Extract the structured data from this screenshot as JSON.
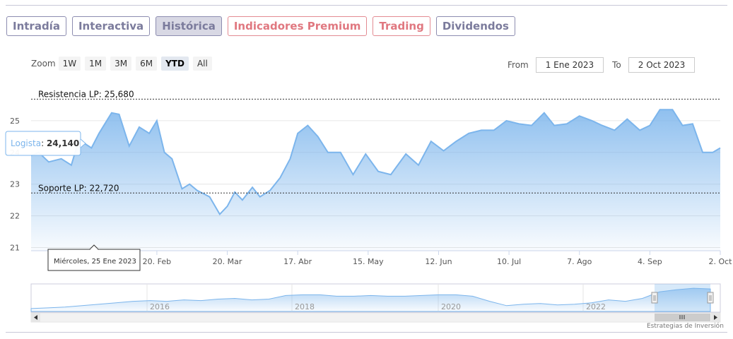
{
  "tabs": [
    {
      "label": "Intradía",
      "state": "normal"
    },
    {
      "label": "Interactiva",
      "state": "normal"
    },
    {
      "label": "Histórica",
      "state": "active"
    },
    {
      "label": "Indicadores Premium",
      "state": "premium"
    },
    {
      "label": "Trading",
      "state": "premium"
    },
    {
      "label": "Dividendos",
      "state": "normal"
    }
  ],
  "zoom": {
    "label": "Zoom",
    "buttons": [
      "1W",
      "1M",
      "3M",
      "6M",
      "YTD",
      "All"
    ],
    "selected": "YTD"
  },
  "range": {
    "from_label": "From",
    "from_value": "1 Ene 2023",
    "to_label": "To",
    "to_value": "2 Oct 2023"
  },
  "tooltip": {
    "name": "Logista",
    "value": "24,140"
  },
  "date_tooltip": "Miércoles, 25 Ene 2023",
  "credits": "Estrategias de Inversión",
  "colors": {
    "line": "#7cb5ec",
    "fill_top": "#7cb5ec",
    "fill_bottom": "#ffffff",
    "accent": "#7b7b9c",
    "premium": "#e07880"
  },
  "chart_data": {
    "type": "area",
    "title": "",
    "ylim": [
      20.9,
      26.2
    ],
    "y_ticks": [
      21,
      22,
      23,
      24,
      25
    ],
    "y_tick_labels": [
      "21",
      "22",
      "23",
      "24",
      "25"
    ],
    "x_range": [
      "2023-01-01",
      "2023-10-02"
    ],
    "x_ticks": [
      "2023-02-20",
      "2023-03-20",
      "2023-04-17",
      "2023-05-15",
      "2023-06-12",
      "2023-07-10",
      "2023-08-07",
      "2023-09-04",
      "2023-10-02"
    ],
    "x_tick_labels": [
      "20. Feb",
      "20. Mar",
      "17. Abr",
      "15. May",
      "12. Jun",
      "10. Jul",
      "7. Ago",
      "4. Sep",
      "2. Oct"
    ],
    "series": [
      {
        "name": "Logista",
        "x": [
          "2023-01-01",
          "2023-01-04",
          "2023-01-08",
          "2023-01-13",
          "2023-01-17",
          "2023-01-20",
          "2023-01-25",
          "2023-01-28",
          "2023-02-02",
          "2023-02-05",
          "2023-02-09",
          "2023-02-13",
          "2023-02-17",
          "2023-02-20",
          "2023-02-23",
          "2023-02-26",
          "2023-03-02",
          "2023-03-05",
          "2023-03-08",
          "2023-03-13",
          "2023-03-17",
          "2023-03-20",
          "2023-03-23",
          "2023-03-26",
          "2023-03-30",
          "2023-04-02",
          "2023-04-06",
          "2023-04-10",
          "2023-04-14",
          "2023-04-17",
          "2023-04-21",
          "2023-04-25",
          "2023-04-29",
          "2023-05-04",
          "2023-05-09",
          "2023-05-14",
          "2023-05-19",
          "2023-05-24",
          "2023-05-30",
          "2023-06-04",
          "2023-06-09",
          "2023-06-14",
          "2023-06-19",
          "2023-06-24",
          "2023-06-29",
          "2023-07-04",
          "2023-07-09",
          "2023-07-14",
          "2023-07-19",
          "2023-07-24",
          "2023-07-28",
          "2023-08-02",
          "2023-08-07",
          "2023-08-12",
          "2023-08-16",
          "2023-08-21",
          "2023-08-26",
          "2023-08-31",
          "2023-09-04",
          "2023-09-08",
          "2023-09-13",
          "2023-09-17",
          "2023-09-21",
          "2023-09-25",
          "2023-09-29",
          "2023-10-02"
        ],
        "values": [
          23.9,
          24.0,
          23.7,
          23.8,
          23.6,
          24.4,
          24.14,
          24.6,
          25.25,
          25.2,
          24.2,
          24.8,
          24.6,
          25.0,
          24.0,
          23.8,
          22.85,
          23.0,
          22.8,
          22.6,
          22.05,
          22.3,
          22.75,
          22.5,
          22.9,
          22.6,
          22.8,
          23.2,
          23.8,
          24.6,
          24.85,
          24.5,
          24.0,
          24.0,
          23.3,
          23.95,
          23.4,
          23.3,
          23.95,
          23.6,
          24.35,
          24.05,
          24.35,
          24.6,
          24.7,
          24.7,
          25.0,
          24.9,
          24.85,
          25.25,
          24.85,
          24.9,
          25.15,
          25.0,
          24.85,
          24.7,
          25.05,
          24.7,
          24.85,
          25.35,
          25.35,
          24.85,
          24.9,
          24.0,
          24.0,
          24.14
        ]
      }
    ],
    "annotations": [
      {
        "label": "Resistencia LP: 25,680",
        "value": 25.68,
        "style": "dashed"
      },
      {
        "label": "Soporte LP: 22,720",
        "value": 22.72,
        "style": "dashed"
      }
    ],
    "navigator": {
      "x_tick_labels": [
        "2016",
        "2018",
        "2020",
        "2022"
      ],
      "values": [
        21.2,
        21.3,
        21.4,
        21.6,
        21.8,
        22.0,
        22.2,
        22.3,
        22.2,
        22.4,
        22.3,
        22.5,
        22.6,
        22.4,
        22.5,
        23.0,
        23.1,
        23.1,
        22.9,
        22.9,
        23.0,
        22.9,
        22.9,
        23.0,
        23.1,
        23.1,
        22.9,
        22.2,
        21.6,
        21.8,
        21.9,
        21.7,
        21.8,
        22.0,
        22.4,
        22.2,
        22.6,
        23.5,
        23.8,
        24.0,
        23.9
      ]
    },
    "grid": true,
    "legend": "none"
  }
}
